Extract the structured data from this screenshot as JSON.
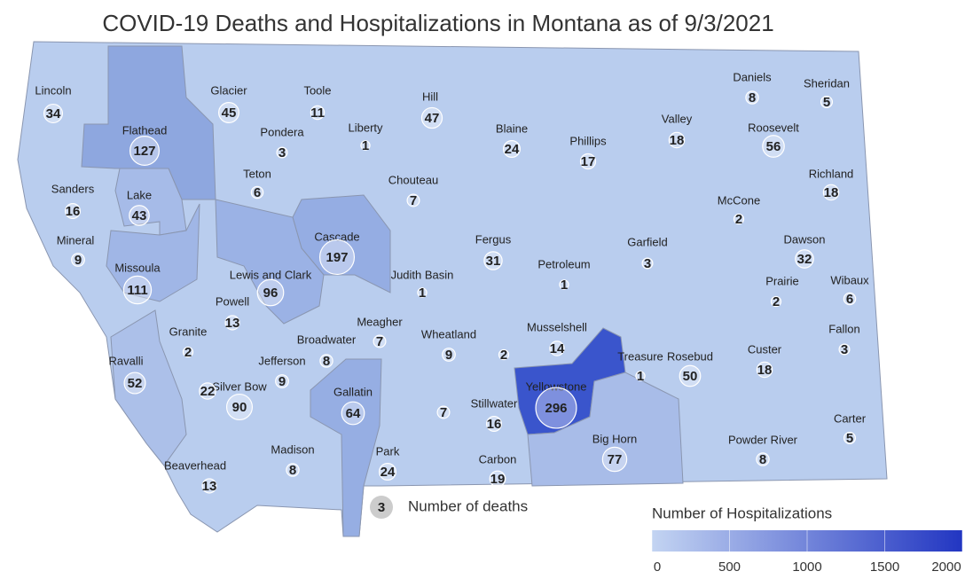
{
  "title": "COVID-19 Deaths and Hospitalizations in Montana as of 9/3/2021",
  "base_color": "#b9cdee",
  "counties": [
    {
      "name": "Lincoln",
      "deaths": 34
    },
    {
      "name": "Glacier",
      "deaths": 45
    },
    {
      "name": "Toole",
      "deaths": 11
    },
    {
      "name": "Hill",
      "deaths": 47
    },
    {
      "name": "Liberty",
      "deaths": 1
    },
    {
      "name": "Flathead",
      "deaths": 127,
      "color": "#8ea7df"
    },
    {
      "name": "Pondera",
      "deaths": 3
    },
    {
      "name": "Blaine",
      "deaths": 24
    },
    {
      "name": "Phillips",
      "deaths": 17
    },
    {
      "name": "Valley",
      "deaths": 18
    },
    {
      "name": "Daniels",
      "deaths": 8
    },
    {
      "name": "Sheridan",
      "deaths": 5
    },
    {
      "name": "Roosevelt",
      "deaths": 56
    },
    {
      "name": "Teton",
      "deaths": 6
    },
    {
      "name": "Chouteau",
      "deaths": 7
    },
    {
      "name": "Richland",
      "deaths": 18
    },
    {
      "name": "McCone",
      "deaths": 2
    },
    {
      "name": "Sanders",
      "deaths": 16
    },
    {
      "name": "Lake",
      "deaths": 43,
      "color": "#a6bbe8"
    },
    {
      "name": "Cascade",
      "deaths": 197,
      "color": "#95ade3"
    },
    {
      "name": "Mineral",
      "deaths": 9
    },
    {
      "name": "Fergus",
      "deaths": 31
    },
    {
      "name": "Petroleum",
      "deaths": 1
    },
    {
      "name": "Garfield",
      "deaths": 3
    },
    {
      "name": "Dawson",
      "deaths": 32
    },
    {
      "name": "Missoula",
      "deaths": 111,
      "color": "#a0b6e6"
    },
    {
      "name": "Lewis and Clark",
      "deaths": 96,
      "color": "#9bb2e5"
    },
    {
      "name": "Judith Basin",
      "deaths": 1
    },
    {
      "name": "Prairie",
      "deaths": 2
    },
    {
      "name": "Wibaux",
      "deaths": 6
    },
    {
      "name": "Powell",
      "deaths": 13
    },
    {
      "name": "Meagher",
      "deaths": 7
    },
    {
      "name": "Musselshell",
      "deaths": 14
    },
    {
      "name": "Wheatland",
      "deaths": 9
    },
    {
      "name": null,
      "deaths": 2
    },
    {
      "name": "Granite",
      "deaths": 2
    },
    {
      "name": "Broadwater",
      "deaths": 8
    },
    {
      "name": "Fallon",
      "deaths": 3
    },
    {
      "name": "Custer",
      "deaths": 18
    },
    {
      "name": "Ravalli",
      "deaths": 52,
      "color": "#acc0e9"
    },
    {
      "name": "Jefferson",
      "deaths": 9
    },
    {
      "name": "Treasure",
      "deaths": 1
    },
    {
      "name": "Rosebud",
      "deaths": 50
    },
    {
      "name": "Silver Bow",
      "deaths": 90
    },
    {
      "name": null,
      "deaths": 22
    },
    {
      "name": "Gallatin",
      "deaths": 64,
      "color": "#96aee3"
    },
    {
      "name": "Yellowstone",
      "deaths": 296,
      "color": "#3a55cc"
    },
    {
      "name": "Stillwater",
      "deaths": 16
    },
    {
      "name": null,
      "deaths": 7
    },
    {
      "name": "Big Horn",
      "deaths": 77,
      "color": "#a8bce8"
    },
    {
      "name": "Carter",
      "deaths": 5
    },
    {
      "name": "Powder River",
      "deaths": 8
    },
    {
      "name": "Madison",
      "deaths": 8
    },
    {
      "name": "Park",
      "deaths": 24
    },
    {
      "name": "Carbon",
      "deaths": 19
    },
    {
      "name": "Beaverhead",
      "deaths": 13
    }
  ],
  "deaths_legend": {
    "value": 3,
    "label": "Number of deaths"
  },
  "color_legend": {
    "title": "Number of Hospitalizations",
    "lim": [
      0,
      2000
    ],
    "ticks": [
      0,
      500,
      1000,
      1500,
      2000
    ],
    "colors": [
      "#c3d4f2",
      "#2236c2"
    ]
  }
}
